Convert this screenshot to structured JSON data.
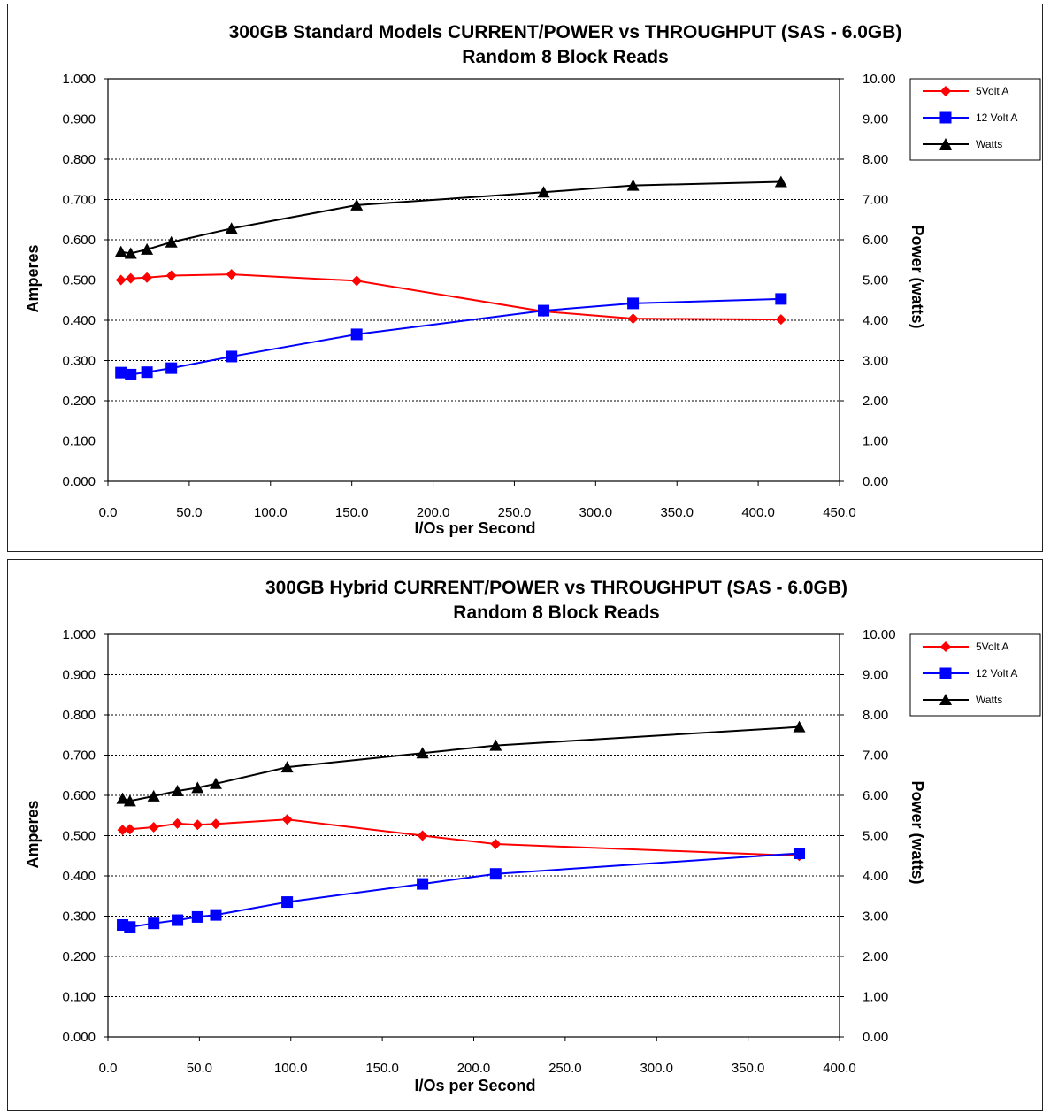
{
  "colors": {
    "volt5": "#ff0000",
    "volt12": "#0000ff",
    "watts": "#000000"
  },
  "chart_data": [
    {
      "type": "line",
      "title": "300GB Standard Models CURRENT/POWER vs THROUGHPUT (SAS - 6.0GB)",
      "subtitle": "Random 8 Block Reads",
      "xlabel": "I/Os per Second",
      "ylabel": "Amperes",
      "y2label": "Power (watts)",
      "xlim": [
        0,
        450
      ],
      "ylim": [
        0,
        1
      ],
      "y2lim": [
        0,
        10
      ],
      "x_ticks": [
        "0.0",
        "50.0",
        "100.0",
        "150.0",
        "200.0",
        "250.0",
        "300.0",
        "350.0",
        "400.0",
        "450.0"
      ],
      "y_ticks": [
        "0.000",
        "0.100",
        "0.200",
        "0.300",
        "0.400",
        "0.500",
        "0.600",
        "0.700",
        "0.800",
        "0.900",
        "1.000"
      ],
      "y2_ticks": [
        "0.00",
        "1.00",
        "2.00",
        "3.00",
        "4.00",
        "5.00",
        "6.00",
        "7.00",
        "8.00",
        "9.00",
        "10.00"
      ],
      "grid": true,
      "legend_position": "top-right",
      "series": [
        {
          "name": "5Volt A",
          "axis": "left",
          "marker": "diamond",
          "color": "#ff0000",
          "x": [
            8,
            14,
            24,
            39,
            76,
            153,
            268,
            323,
            414
          ],
          "y": [
            0.5,
            0.504,
            0.506,
            0.511,
            0.514,
            0.498,
            0.422,
            0.404,
            0.402
          ]
        },
        {
          "name": "12 Volt A",
          "axis": "left",
          "marker": "square",
          "color": "#0000ff",
          "x": [
            8,
            14,
            24,
            39,
            76,
            153,
            268,
            323,
            414
          ],
          "y": [
            0.27,
            0.265,
            0.271,
            0.281,
            0.31,
            0.365,
            0.424,
            0.442,
            0.453
          ]
        },
        {
          "name": "Watts",
          "axis": "right",
          "marker": "triangle",
          "color": "#000000",
          "x": [
            8,
            14,
            24,
            39,
            76,
            153,
            268,
            323,
            414
          ],
          "y": [
            5.7,
            5.66,
            5.76,
            5.94,
            6.28,
            6.86,
            7.18,
            7.35,
            7.44
          ]
        }
      ]
    },
    {
      "type": "line",
      "title": "300GB Hybrid CURRENT/POWER vs THROUGHPUT (SAS - 6.0GB)",
      "subtitle": "Random 8 Block Reads",
      "xlabel": "I/Os per Second",
      "ylabel": "Amperes",
      "y2label": "Power (watts)",
      "xlim": [
        0,
        400
      ],
      "ylim": [
        0,
        1
      ],
      "y2lim": [
        0,
        10
      ],
      "x_ticks": [
        "0.0",
        "50.0",
        "100.0",
        "150.0",
        "200.0",
        "250.0",
        "300.0",
        "350.0",
        "400.0"
      ],
      "y_ticks": [
        "0.000",
        "0.100",
        "0.200",
        "0.300",
        "0.400",
        "0.500",
        "0.600",
        "0.700",
        "0.800",
        "0.900",
        "1.000"
      ],
      "y2_ticks": [
        "0.00",
        "1.00",
        "2.00",
        "3.00",
        "4.00",
        "5.00",
        "6.00",
        "7.00",
        "8.00",
        "9.00",
        "10.00"
      ],
      "grid": true,
      "legend_position": "top-right",
      "series": [
        {
          "name": "5Volt A",
          "axis": "left",
          "marker": "diamond",
          "color": "#ff0000",
          "x": [
            8,
            12,
            25,
            38,
            49,
            59,
            98,
            172,
            212,
            378
          ],
          "y": [
            0.514,
            0.516,
            0.521,
            0.53,
            0.527,
            0.529,
            0.54,
            0.5,
            0.479,
            0.45
          ]
        },
        {
          "name": "12 Volt A",
          "axis": "left",
          "marker": "square",
          "color": "#0000ff",
          "x": [
            8,
            12,
            25,
            38,
            49,
            59,
            98,
            172,
            212,
            378
          ],
          "y": [
            0.278,
            0.273,
            0.282,
            0.29,
            0.298,
            0.303,
            0.335,
            0.38,
            0.405,
            0.456
          ]
        },
        {
          "name": "Watts",
          "axis": "right",
          "marker": "triangle",
          "color": "#000000",
          "x": [
            8,
            12,
            25,
            38,
            49,
            59,
            98,
            172,
            212,
            378
          ],
          "y": [
            5.92,
            5.86,
            5.98,
            6.11,
            6.19,
            6.29,
            6.7,
            7.05,
            7.24,
            7.7
          ]
        }
      ]
    }
  ]
}
